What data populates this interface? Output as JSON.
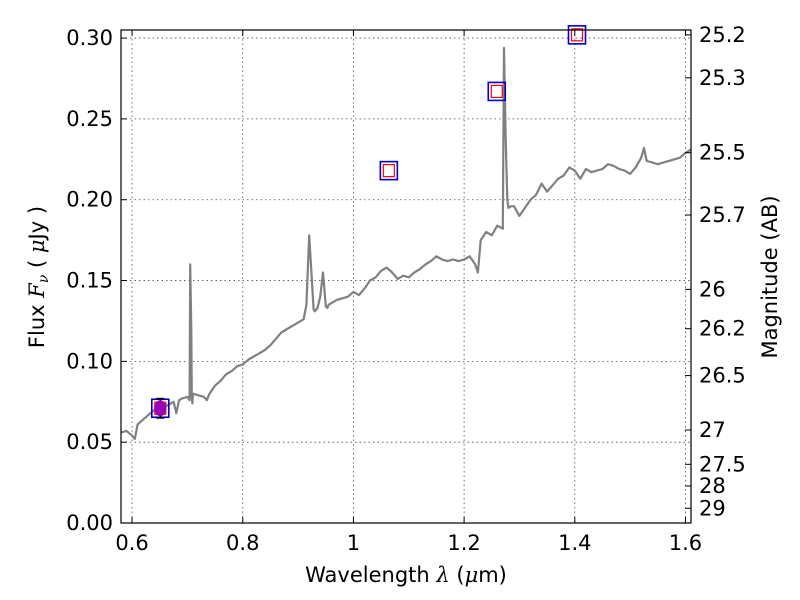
{
  "chart_data": {
    "type": "line",
    "xlabel": "Wavelength  λ (μm)",
    "xlabel_parts": {
      "prefix": "Wavelength  ",
      "symbol": "λ",
      "open": " (",
      "unit_symbol": "μ",
      "unit": "m)"
    },
    "ylabel": "Flux  Fν  ( μJy )",
    "ylabel_parts": {
      "prefix": "Flux  ",
      "symbol": "F",
      "subscript": "ν",
      "open": "  ( ",
      "unit_symbol": "μ",
      "unit": "Jy )"
    },
    "y2label": "Magnitude (AB)",
    "xlim": [
      0.58,
      1.61
    ],
    "ylim": [
      0.0,
      0.305
    ],
    "xticks": [
      {
        "v": 0.6,
        "label": "0.6"
      },
      {
        "v": 0.8,
        "label": "0.8"
      },
      {
        "v": 1.0,
        "label": "1"
      },
      {
        "v": 1.2,
        "label": "1.2"
      },
      {
        "v": 1.4,
        "label": "1.4"
      },
      {
        "v": 1.6,
        "label": "1.6"
      }
    ],
    "yticks": [
      {
        "v": 0.0,
        "label": "0.00"
      },
      {
        "v": 0.05,
        "label": "0.05"
      },
      {
        "v": 0.1,
        "label": "0.10"
      },
      {
        "v": 0.15,
        "label": "0.15"
      },
      {
        "v": 0.2,
        "label": "0.20"
      },
      {
        "v": 0.25,
        "label": "0.25"
      },
      {
        "v": 0.3,
        "label": "0.30"
      }
    ],
    "y2ticks": [
      {
        "v": 25.2,
        "label": "25.2"
      },
      {
        "v": 25.3,
        "label": "25.3"
      },
      {
        "v": 25.5,
        "label": "25.5"
      },
      {
        "v": 25.7,
        "label": "25.7"
      },
      {
        "v": 26,
        "label": "26"
      },
      {
        "v": 26.2,
        "label": "26.2"
      },
      {
        "v": 26.5,
        "label": "26.5"
      },
      {
        "v": 27,
        "label": "27"
      },
      {
        "v": 27.5,
        "label": "27.5"
      },
      {
        "v": 28,
        "label": "28"
      },
      {
        "v": 29,
        "label": "29"
      }
    ],
    "grid": true,
    "colors": {
      "spectrum": "#808080",
      "model_box": "#0000cc",
      "data_box": "#ff0000",
      "observed_point": "#9900bb"
    },
    "spectrum": {
      "x": [
        0.58,
        0.59,
        0.6,
        0.605,
        0.61,
        0.62,
        0.63,
        0.64,
        0.65,
        0.66,
        0.67,
        0.675,
        0.68,
        0.685,
        0.69,
        0.7,
        0.704,
        0.705,
        0.707,
        0.708,
        0.709,
        0.71,
        0.72,
        0.73,
        0.735,
        0.74,
        0.75,
        0.76,
        0.77,
        0.78,
        0.79,
        0.8,
        0.81,
        0.82,
        0.83,
        0.84,
        0.85,
        0.86,
        0.87,
        0.88,
        0.89,
        0.9,
        0.91,
        0.915,
        0.92,
        0.925,
        0.928,
        0.93,
        0.935,
        0.94,
        0.945,
        0.95,
        0.953,
        0.955,
        0.96,
        0.97,
        0.98,
        0.99,
        1.0,
        1.01,
        1.02,
        1.03,
        1.04,
        1.05,
        1.06,
        1.07,
        1.08,
        1.09,
        1.1,
        1.11,
        1.12,
        1.13,
        1.14,
        1.15,
        1.16,
        1.17,
        1.18,
        1.19,
        1.2,
        1.21,
        1.22,
        1.225,
        1.23,
        1.24,
        1.25,
        1.26,
        1.27,
        1.272,
        1.275,
        1.278,
        1.28,
        1.285,
        1.29,
        1.3,
        1.31,
        1.32,
        1.33,
        1.34,
        1.35,
        1.36,
        1.37,
        1.38,
        1.39,
        1.4,
        1.41,
        1.42,
        1.43,
        1.44,
        1.45,
        1.46,
        1.47,
        1.48,
        1.49,
        1.5,
        1.51,
        1.52,
        1.525,
        1.53,
        1.54,
        1.55,
        1.56,
        1.57,
        1.58,
        1.59,
        1.6,
        1.61
      ],
      "y": [
        0.056,
        0.057,
        0.054,
        0.052,
        0.061,
        0.064,
        0.067,
        0.07,
        0.071,
        0.072,
        0.074,
        0.075,
        0.068,
        0.076,
        0.077,
        0.078,
        0.076,
        0.16,
        0.12,
        0.078,
        0.074,
        0.08,
        0.079,
        0.078,
        0.076,
        0.08,
        0.085,
        0.088,
        0.092,
        0.094,
        0.097,
        0.098,
        0.101,
        0.103,
        0.105,
        0.107,
        0.11,
        0.114,
        0.118,
        0.12,
        0.122,
        0.124,
        0.126,
        0.135,
        0.178,
        0.15,
        0.132,
        0.131,
        0.133,
        0.14,
        0.155,
        0.134,
        0.133,
        0.135,
        0.136,
        0.138,
        0.139,
        0.14,
        0.143,
        0.141,
        0.145,
        0.15,
        0.152,
        0.156,
        0.158,
        0.155,
        0.151,
        0.153,
        0.152,
        0.155,
        0.157,
        0.16,
        0.162,
        0.165,
        0.163,
        0.162,
        0.163,
        0.162,
        0.163,
        0.165,
        0.16,
        0.155,
        0.175,
        0.18,
        0.178,
        0.184,
        0.182,
        0.294,
        0.24,
        0.2,
        0.195,
        0.196,
        0.196,
        0.19,
        0.195,
        0.2,
        0.203,
        0.21,
        0.205,
        0.209,
        0.213,
        0.215,
        0.22,
        0.218,
        0.213,
        0.219,
        0.217,
        0.218,
        0.219,
        0.222,
        0.221,
        0.219,
        0.218,
        0.216,
        0.22,
        0.226,
        0.232,
        0.224,
        0.223,
        0.222,
        0.223,
        0.224,
        0.225,
        0.226,
        0.229,
        0.231
      ]
    },
    "photometry": [
      {
        "x": 0.651,
        "y": 0.071,
        "type": "box"
      },
      {
        "x": 1.064,
        "y": 0.218,
        "type": "box"
      },
      {
        "x": 1.259,
        "y": 0.267,
        "type": "box"
      },
      {
        "x": 1.404,
        "y": 0.302,
        "type": "box"
      }
    ],
    "observed": [
      {
        "x": 0.651,
        "y": 0.071,
        "yerr": 0.006
      }
    ]
  }
}
